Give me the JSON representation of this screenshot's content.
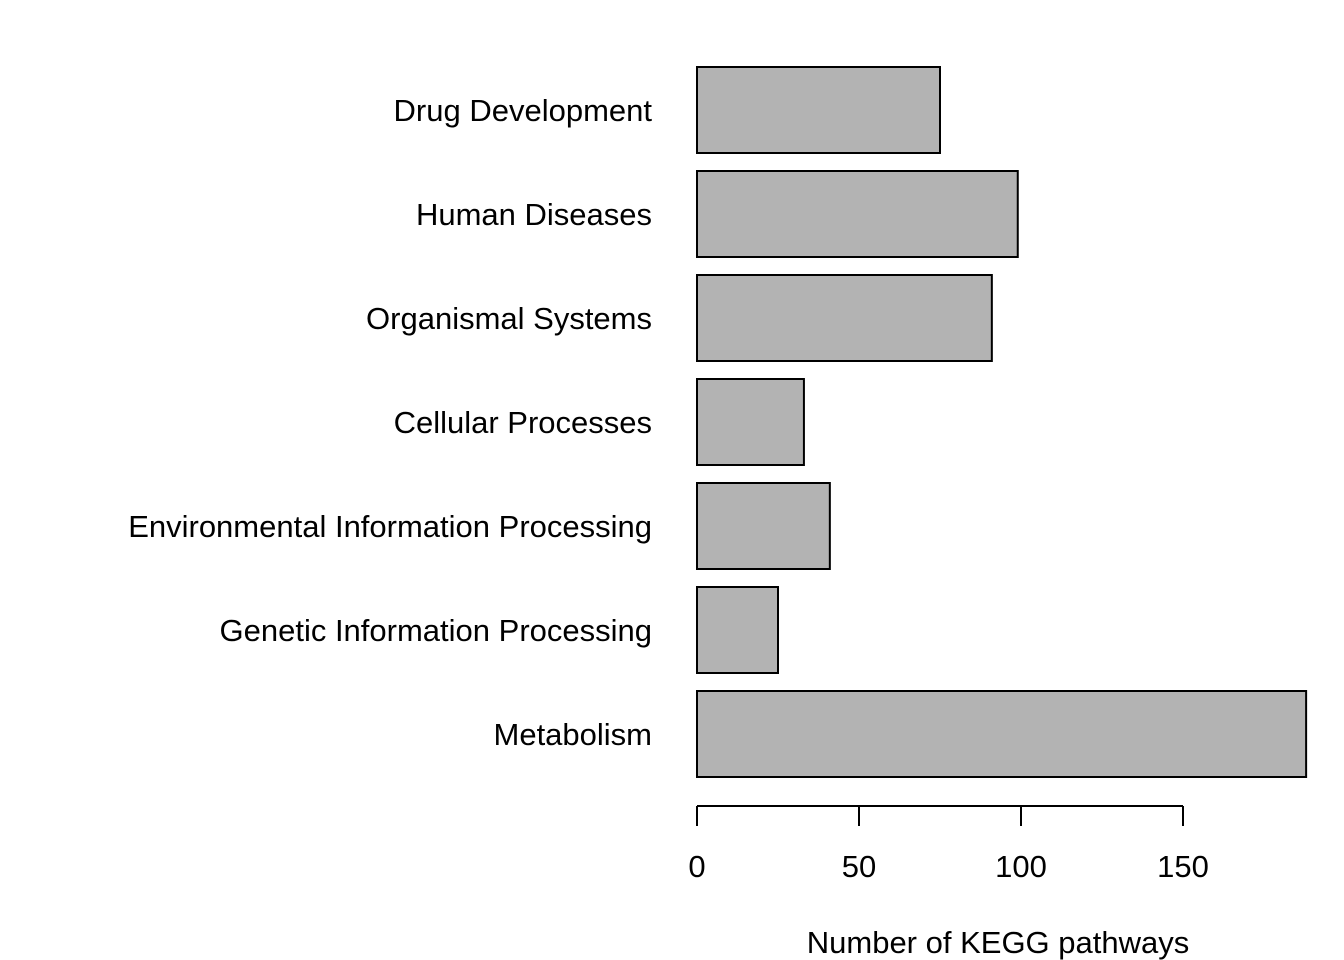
{
  "chart_data": {
    "type": "bar",
    "orientation": "horizontal",
    "categories": [
      "Drug Development",
      "Human Diseases",
      "Organismal Systems",
      "Cellular Processes",
      "Environmental Information Processing",
      "Genetic Information Processing",
      "Metabolism"
    ],
    "values": [
      75,
      99,
      91,
      33,
      41,
      25,
      188
    ],
    "xlabel": "Number of KEGG pathways",
    "ylabel": "",
    "xticks": [
      0,
      50,
      100,
      150
    ],
    "xlim": [
      0,
      188
    ],
    "bar_color": "#b3b3b3",
    "grid": false,
    "legend": "none"
  }
}
